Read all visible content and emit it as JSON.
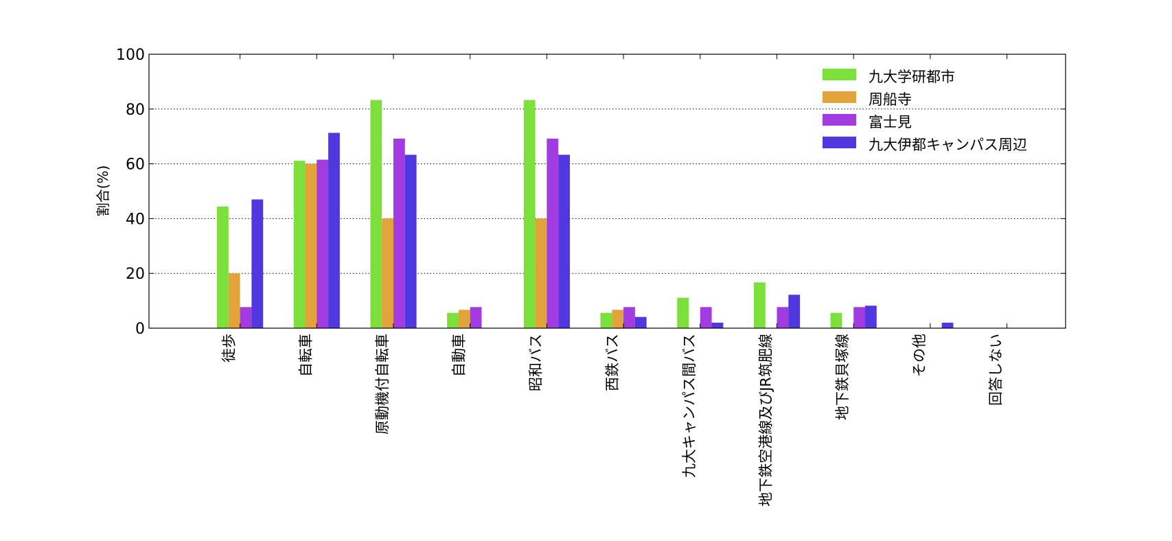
{
  "chart_data": {
    "type": "bar",
    "title": "",
    "xlabel": "",
    "ylabel": "割合(%)",
    "ylim": [
      0,
      100
    ],
    "yticks": [
      0,
      20,
      40,
      60,
      80,
      100
    ],
    "grid": "horizontal dotted",
    "legend_position": "top-right",
    "categories": [
      "徒歩",
      "自転車",
      "原動機付自転車",
      "自動車",
      "昭和バス",
      "西鉄バス",
      "九大キャンパス間バス",
      "地下鉄空港線及びJR筑肥線",
      "地下鉄貝塚線",
      "その他",
      "回答しない"
    ],
    "series": [
      {
        "name": "九大学研都市",
        "color": "#7ddf3c",
        "values": [
          44.4,
          61.1,
          83.3,
          5.6,
          83.3,
          5.6,
          11.1,
          16.7,
          5.6,
          0,
          0
        ]
      },
      {
        "name": "周船寺",
        "color": "#e3a33b",
        "values": [
          20.0,
          60.0,
          40.0,
          6.7,
          40.0,
          6.7,
          0,
          0,
          0,
          0,
          0
        ]
      },
      {
        "name": "富士見",
        "color": "#a23be0",
        "values": [
          7.7,
          61.5,
          69.2,
          7.7,
          69.2,
          7.7,
          7.7,
          7.7,
          7.7,
          0,
          0
        ]
      },
      {
        "name": "九大伊都キャンパス周辺",
        "color": "#4f38e0",
        "values": [
          47.0,
          71.3,
          63.3,
          0,
          63.3,
          4.1,
          2.0,
          12.2,
          8.2,
          2.0,
          0
        ]
      }
    ]
  }
}
